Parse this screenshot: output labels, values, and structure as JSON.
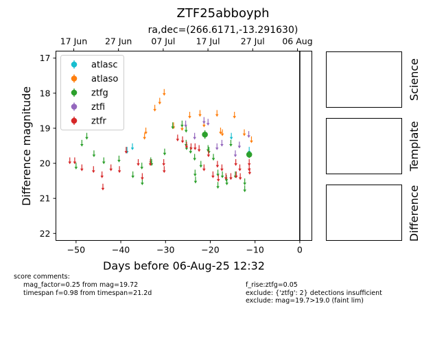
{
  "figure": {
    "title": "ZTF25abboyph",
    "subtitle": "ra,dec=(266.6171,-13.291630)",
    "panels": [
      "Science",
      "Template",
      "Difference"
    ]
  },
  "chart_data": {
    "type": "scatter",
    "title": "ZTF25abboyph",
    "subtitle": "ra,dec=(266.6171,-13.291630)",
    "xlabel": "Days before 06-Aug-25 12:32",
    "ylabel": "Difference magnitude",
    "xlim": [
      -54.5,
      2.7
    ],
    "ylim": [
      22.2,
      16.8
    ],
    "y_inverted": true,
    "xticks": [
      -50,
      -40,
      -30,
      -20,
      -10,
      0
    ],
    "yticks": [
      17,
      18,
      19,
      20,
      21,
      22
    ],
    "top_axis_ticks": [
      {
        "label": "17 Jun",
        "x": -50.52
      },
      {
        "label": "27 Jun",
        "x": -40.52
      },
      {
        "label": "07 Jul",
        "x": -30.52
      },
      {
        "label": "17 Jul",
        "x": -20.52
      },
      {
        "label": "27 Jul",
        "x": -10.52
      },
      {
        "label": "06 Aug",
        "x": -0.52
      }
    ],
    "vline_x": 0,
    "grid": false,
    "legend_position": "top-left",
    "series": [
      {
        "name": "atlasc",
        "color": "#17becf",
        "marker": "upper-limit",
        "points": [
          [
            -38.6,
            19.6
          ],
          [
            -37.4,
            19.5
          ],
          [
            -15.3,
            19.2
          ],
          [
            -11.3,
            19.6
          ]
        ]
      },
      {
        "name": "atlaso",
        "color": "#ff7f0e",
        "marker": "upper-limit",
        "points": [
          [
            -34.7,
            19.2
          ],
          [
            -34.4,
            19.05
          ],
          [
            -32.4,
            18.4
          ],
          [
            -31.3,
            18.2
          ],
          [
            -30.3,
            17.95
          ],
          [
            -28.2,
            18.9
          ],
          [
            -26.3,
            18.95
          ],
          [
            -24.6,
            18.6
          ],
          [
            -22.3,
            18.55
          ],
          [
            -21.4,
            18.85
          ],
          [
            -18.5,
            18.55
          ],
          [
            -17.7,
            19.05
          ],
          [
            -17.3,
            19.1
          ],
          [
            -14.6,
            18.6
          ],
          [
            -12.4,
            19.1
          ],
          [
            -10.8,
            19.3
          ]
        ]
      },
      {
        "name": "ztfg",
        "color": "#2ca02c",
        "marker": "upper-limit",
        "points": [
          [
            -50.0,
            20.05
          ],
          [
            -48.7,
            19.4
          ],
          [
            -47.6,
            19.2
          ],
          [
            -46.0,
            19.7
          ],
          [
            -43.8,
            19.9
          ],
          [
            -40.4,
            19.85
          ],
          [
            -37.3,
            20.3
          ],
          [
            -35.3,
            20.05
          ],
          [
            -35.2,
            20.5
          ],
          [
            -33.3,
            19.9
          ],
          [
            -33.1,
            19.95
          ],
          [
            -30.2,
            19.65
          ],
          [
            -28.4,
            18.9
          ],
          [
            -26.3,
            18.85
          ],
          [
            -25.4,
            19.0
          ],
          [
            -25.4,
            19.4
          ],
          [
            -25.3,
            19.5
          ],
          [
            -24.4,
            19.6
          ],
          [
            -23.5,
            19.8
          ],
          [
            -23.4,
            20.25
          ],
          [
            -23.3,
            20.45
          ],
          [
            -22.1,
            20.0
          ],
          [
            -20.5,
            19.55
          ],
          [
            -20.3,
            19.6
          ],
          [
            -19.3,
            19.8
          ],
          [
            -18.3,
            20.25
          ],
          [
            -18.3,
            20.6
          ],
          [
            -17.3,
            20.3
          ],
          [
            -16.4,
            20.4
          ],
          [
            -16.3,
            20.5
          ],
          [
            -15.4,
            19.4
          ],
          [
            -14.4,
            20.3
          ],
          [
            -12.3,
            20.5
          ],
          [
            -12.3,
            20.7
          ]
        ]
      },
      {
        "name": "ztfi",
        "color": "#9467bd",
        "marker": "upper-limit",
        "points": [
          [
            -25.5,
            18.85
          ],
          [
            -23.5,
            19.2
          ],
          [
            -21.4,
            18.75
          ],
          [
            -20.5,
            18.8
          ],
          [
            -18.5,
            19.5
          ],
          [
            -17.4,
            19.4
          ],
          [
            -14.4,
            19.7
          ],
          [
            -13.5,
            19.45
          ],
          [
            -11.4,
            19.15
          ]
        ]
      },
      {
        "name": "ztfr",
        "color": "#d62728",
        "marker": "upper-limit",
        "points": [
          [
            -51.4,
            19.9
          ],
          [
            -50.3,
            19.9
          ],
          [
            -48.7,
            20.1
          ],
          [
            -46.1,
            20.15
          ],
          [
            -44.2,
            20.3
          ],
          [
            -44.0,
            20.65
          ],
          [
            -42.2,
            20.1
          ],
          [
            -40.3,
            20.15
          ],
          [
            -38.8,
            19.6
          ],
          [
            -36.1,
            19.95
          ],
          [
            -35.2,
            20.35
          ],
          [
            -33.4,
            19.95
          ],
          [
            -30.4,
            19.95
          ],
          [
            -30.3,
            20.15
          ],
          [
            -27.3,
            19.25
          ],
          [
            -26.2,
            19.3
          ],
          [
            -25.3,
            19.45
          ],
          [
            -24.3,
            19.5
          ],
          [
            -23.4,
            19.5
          ],
          [
            -22.5,
            19.55
          ],
          [
            -21.4,
            20.1
          ],
          [
            -20.4,
            19.7
          ],
          [
            -19.4,
            20.3
          ],
          [
            -18.4,
            20.0
          ],
          [
            -18.2,
            20.4
          ],
          [
            -17.4,
            20.1
          ],
          [
            -16.5,
            20.35
          ],
          [
            -15.4,
            20.35
          ],
          [
            -14.3,
            19.95
          ],
          [
            -14.2,
            20.3
          ],
          [
            -13.4,
            20.1
          ],
          [
            -13.3,
            20.35
          ],
          [
            -11.3,
            19.95
          ],
          [
            -11.3,
            20.1
          ],
          [
            -11.2,
            20.2
          ]
        ]
      },
      {
        "name": "ztfg",
        "color": "#2ca02c",
        "marker": "detection",
        "in_legend": false,
        "points": [
          [
            -21.2,
            19.18,
            0.12
          ],
          [
            -11.3,
            19.75,
            0.1
          ]
        ]
      }
    ]
  },
  "score_comments": {
    "header": "score comments:",
    "left": [
      "mag_factor=0.25 from mag=19.72",
      "timespan f=0.98 from timespan=21.2d"
    ],
    "right": [
      "f_rise:ztfg=0.05",
      "exclude: {'ztfg': 2} detections insufficient",
      "exclude: mag=19.7>19.0 (faint lim)"
    ]
  }
}
